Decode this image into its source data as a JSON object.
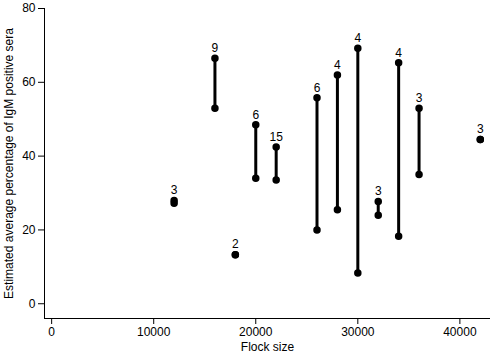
{
  "chart_data": {
    "type": "range",
    "x_label": "Flock size",
    "y_label": "Estimated average percentage of IgM positive sera",
    "x": [
      12000,
      16000,
      18000,
      20000,
      22000,
      26000,
      28000,
      30000,
      32000,
      34000,
      36000,
      42000
    ],
    "low": [
      27.2,
      53,
      13.3,
      34,
      33.5,
      20,
      25.5,
      8.3,
      24,
      18.3,
      35,
      44.5
    ],
    "high": [
      28,
      66.5,
      13.3,
      48.5,
      42.5,
      55.8,
      62,
      69.2,
      27.7,
      65.3,
      53,
      44.5
    ],
    "counts": [
      3,
      9,
      2,
      6,
      15,
      6,
      4,
      4,
      3,
      4,
      3,
      3
    ],
    "color": "#000000",
    "marker": "circle",
    "xlim": [
      -700,
      43000
    ],
    "ylim": [
      -4,
      80
    ],
    "xticks": [
      0,
      10000,
      20000,
      30000,
      40000
    ],
    "yticks": [
      0,
      20,
      40,
      60,
      80
    ],
    "grid": false
  }
}
